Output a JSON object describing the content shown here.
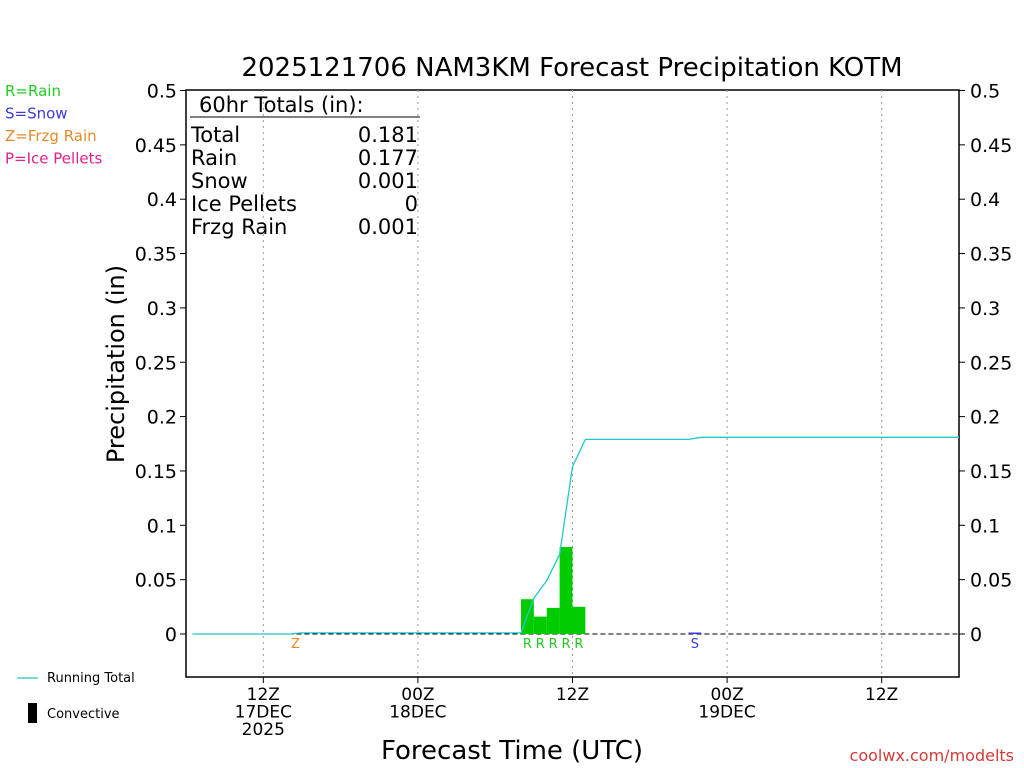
{
  "chart_data": {
    "type": "bar",
    "title": "2025121706 NAM3KM Forecast Precipitation KOTM",
    "xlabel": "Forecast Time (UTC)",
    "ylabel": "Precipitation (in)",
    "ylim": [
      -0.04,
      0.5
    ],
    "yticks": [
      {
        "value": 0,
        "label": "0"
      },
      {
        "value": 0.05,
        "label": "0.05"
      },
      {
        "value": 0.1,
        "label": "0.1"
      },
      {
        "value": 0.15,
        "label": "0.15"
      },
      {
        "value": 0.2,
        "label": "0.2"
      },
      {
        "value": 0.25,
        "label": "0.25"
      },
      {
        "value": 0.3,
        "label": "0.3"
      },
      {
        "value": 0.35,
        "label": "0.35"
      },
      {
        "value": 0.4,
        "label": "0.4"
      },
      {
        "value": 0.45,
        "label": "0.45"
      },
      {
        "value": 0.5,
        "label": "0.5"
      }
    ],
    "x_unit": "forecast hour",
    "xlim": [
      0,
      60
    ],
    "xticks": [
      {
        "hour": 6,
        "lines": [
          "12Z",
          "17DEC",
          "2025"
        ]
      },
      {
        "hour": 18,
        "lines": [
          "00Z",
          "18DEC"
        ]
      },
      {
        "hour": 30,
        "lines": [
          "12Z"
        ]
      },
      {
        "hour": 42,
        "lines": [
          "00Z",
          "19DEC"
        ]
      },
      {
        "hour": 54,
        "lines": [
          "12Z"
        ]
      }
    ],
    "grid": "vertical dotted at x ticks",
    "bars": [
      {
        "hour": 26.5,
        "value": 0.032,
        "type": "R"
      },
      {
        "hour": 27.5,
        "value": 0.016,
        "type": "R"
      },
      {
        "hour": 28.5,
        "value": 0.024,
        "type": "R"
      },
      {
        "hour": 29.5,
        "value": 0.08,
        "type": "R"
      },
      {
        "hour": 30.5,
        "value": 0.025,
        "type": "R"
      },
      {
        "hour": 39.5,
        "value": 0.001,
        "type": "S"
      }
    ],
    "type_markers": [
      {
        "hour": 8.5,
        "type": "Z"
      },
      {
        "hour": 26.5,
        "type": "R"
      },
      {
        "hour": 27.5,
        "type": "R"
      },
      {
        "hour": 28.5,
        "type": "R"
      },
      {
        "hour": 29.5,
        "type": "R"
      },
      {
        "hour": 30.5,
        "type": "R"
      },
      {
        "hour": 39.5,
        "type": "S"
      }
    ],
    "running_total": {
      "name": "Running Total",
      "hours": [
        0.5,
        8,
        9,
        26,
        27,
        28,
        29,
        30,
        31,
        39,
        40,
        43,
        44,
        60
      ],
      "values": [
        0,
        0,
        0.001,
        0.001,
        0.033,
        0.049,
        0.073,
        0.154,
        0.179,
        0.179,
        0.181,
        0.181,
        0.181,
        0.181
      ]
    },
    "totals_box": {
      "header": "60hr Totals (in):",
      "rows": [
        {
          "label": "Total",
          "value": "0.181"
        },
        {
          "label": "Rain",
          "value": "0.177"
        },
        {
          "label": "Snow",
          "value": "0.001"
        },
        {
          "label": "Ice Pellets",
          "value": "0"
        },
        {
          "label": "Frzg Rain",
          "value": "0.001"
        }
      ]
    },
    "precip_legend": [
      {
        "key": "R",
        "text": "R=Rain",
        "color": "#22cc22"
      },
      {
        "key": "S",
        "text": "S=Snow",
        "color": "#3a3ae0"
      },
      {
        "key": "Z",
        "text": "Z=Frzg Rain",
        "color": "#e88a2a"
      },
      {
        "key": "P",
        "text": "P=Ice Pellets",
        "color": "#e0208a"
      }
    ],
    "series_legend": [
      {
        "text": "Running Total",
        "color": "#20c8c8"
      },
      {
        "text": "Convective",
        "color": "#000000"
      }
    ],
    "colors": {
      "rain_bar": "#00cc00",
      "snow_bar": "#3a3ae0",
      "running_total": "#20c8c8",
      "credit": "#d43a3a"
    },
    "credit": "coolwx.com/modelts"
  }
}
